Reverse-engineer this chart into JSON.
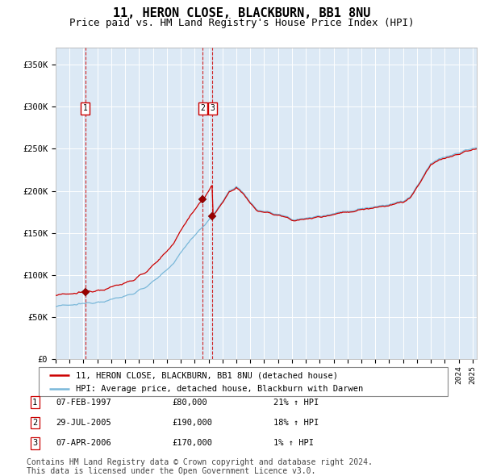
{
  "title": "11, HERON CLOSE, BLACKBURN, BB1 8NU",
  "subtitle": "Price paid vs. HM Land Registry's House Price Index (HPI)",
  "title_fontsize": 11,
  "subtitle_fontsize": 9,
  "background_color": "#dce9f5",
  "hpi_line_color": "#7ab8d9",
  "price_line_color": "#cc0000",
  "vline_color": "#cc0000",
  "ylim": [
    0,
    370000
  ],
  "yticks": [
    0,
    50000,
    100000,
    150000,
    200000,
    250000,
    300000,
    350000
  ],
  "ytick_labels": [
    "£0",
    "£50K",
    "£100K",
    "£150K",
    "£200K",
    "£250K",
    "£300K",
    "£350K"
  ],
  "transactions": [
    {
      "label": "1",
      "date": "07-FEB-1997",
      "price": 80000,
      "hpi_pct": "21%",
      "year": 1997.12
    },
    {
      "label": "2",
      "date": "29-JUL-2005",
      "price": 190000,
      "hpi_pct": "18%",
      "year": 2005.58
    },
    {
      "label": "3",
      "date": "07-APR-2006",
      "price": 170000,
      "hpi_pct": "1%",
      "year": 2006.27
    }
  ],
  "legend_entries": [
    "11, HERON CLOSE, BLACKBURN, BB1 8NU (detached house)",
    "HPI: Average price, detached house, Blackburn with Darwen"
  ],
  "footer": "Contains HM Land Registry data © Crown copyright and database right 2024.\nThis data is licensed under the Open Government Licence v3.0.",
  "footer_fontsize": 7,
  "xstart": 1995,
  "xend": 2025.3
}
